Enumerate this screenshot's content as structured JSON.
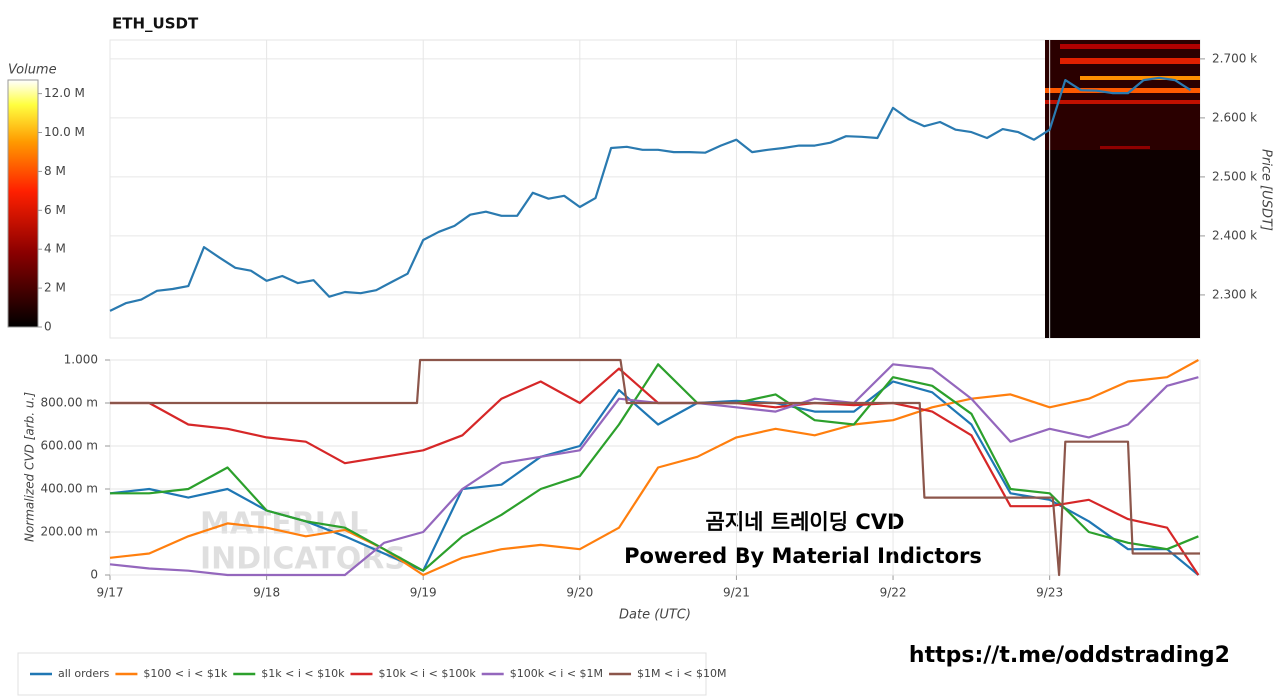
{
  "chart_data": [
    {
      "type": "line",
      "title": "ETH_USDT",
      "ylabel": "Price [USDT]",
      "color": "#2a7ab0",
      "x": [
        0,
        0.1,
        0.2,
        0.3,
        0.4,
        0.5,
        0.6,
        0.7,
        0.8,
        0.9,
        1.0,
        1.1,
        1.2,
        1.3,
        1.4,
        1.5,
        1.6,
        1.7,
        1.8,
        1.9,
        2.0,
        2.1,
        2.2,
        2.3,
        2.4,
        2.5,
        2.6,
        2.7,
        2.8,
        2.9,
        3.0,
        3.1,
        3.2,
        3.3,
        3.4,
        3.5,
        3.6,
        3.7,
        3.8,
        3.9,
        4.0,
        4.1,
        4.2,
        4.3,
        4.4,
        4.5,
        4.6,
        4.7,
        4.8,
        4.9,
        5.0,
        5.1,
        5.2,
        5.3,
        5.4,
        5.5,
        5.6,
        5.7,
        5.8,
        5.9,
        6.0,
        6.1,
        6.2,
        6.3,
        6.4,
        6.5,
        6.6,
        6.7,
        6.8,
        6.9
      ],
      "values": [
        2273,
        2286,
        2292,
        2307,
        2310,
        2315,
        2381,
        2363,
        2346,
        2341,
        2324,
        2332,
        2320,
        2325,
        2297,
        2305,
        2303,
        2308,
        2322,
        2336,
        2393,
        2407,
        2417,
        2436,
        2441,
        2434,
        2434,
        2473,
        2463,
        2468,
        2449,
        2464,
        2549,
        2551,
        2546,
        2546,
        2542,
        2542,
        2541,
        2553,
        2563,
        2542,
        2546,
        2549,
        2553,
        2553,
        2558,
        2569,
        2568,
        2566,
        2617,
        2598,
        2586,
        2593,
        2580,
        2576,
        2566,
        2581,
        2576,
        2563,
        2580,
        2664,
        2647,
        2646,
        2642,
        2642,
        2664,
        2668,
        2664,
        2647
      ],
      "xlim": [
        0,
        6.96
      ],
      "ylim": [
        2227,
        2732
      ],
      "yticks": [
        {
          "value": 2300,
          "label": "2.300 k"
        },
        {
          "value": 2400,
          "label": "2.400 k"
        },
        {
          "value": 2500,
          "label": "2.500 k"
        },
        {
          "value": 2600,
          "label": "2.600 k"
        },
        {
          "value": 2700,
          "label": "2.700 k"
        }
      ],
      "colorbar": {
        "label": "Volume",
        "lim": [
          0,
          12700000
        ],
        "ticks": [
          0,
          {
            "value": 2000000,
            "label": "2 M"
          },
          {
            "value": 4000000,
            "label": "4 M"
          },
          {
            "value": 6000000,
            "label": "6 M"
          },
          {
            "value": 8000000,
            "label": "8 M"
          },
          {
            "value": 10000000,
            "label": "10.0 M"
          },
          {
            "value": 12000000,
            "label": "12.0 M"
          }
        ]
      },
      "grid": true
    },
    {
      "type": "line",
      "xlabel": "Date (UTC)",
      "ylabel": "Normalized CVD [arb. u.]",
      "x": [
        0,
        0.25,
        0.5,
        0.75,
        1,
        1.25,
        1.5,
        1.75,
        2,
        2.25,
        2.5,
        2.75,
        3,
        3.25,
        3.5,
        3.75,
        4,
        4.25,
        4.5,
        4.75,
        5,
        5.25,
        5.5,
        5.75,
        6,
        6.25,
        6.5,
        6.75,
        6.95
      ],
      "xlim": [
        0,
        6.96
      ],
      "xticks": [
        {
          "value": 0,
          "label": "9/17"
        },
        {
          "value": 1,
          "label": "9/18"
        },
        {
          "value": 2,
          "label": "9/19"
        },
        {
          "value": 3,
          "label": "9/20"
        },
        {
          "value": 4,
          "label": "9/21"
        },
        {
          "value": 5,
          "label": "9/22"
        },
        {
          "value": 6,
          "label": "9/23"
        }
      ],
      "ylim": [
        0,
        1
      ],
      "yticks": [
        0,
        {
          "value": 0.2,
          "label": "200.00 m"
        },
        {
          "value": 0.4,
          "label": "400.00 m"
        },
        {
          "value": 0.6,
          "label": "600.00 m"
        },
        {
          "value": 0.8,
          "label": "800.00 m"
        },
        {
          "value": 1,
          "label": "1.000"
        }
      ],
      "grid": true,
      "legend": "bottom",
      "series": [
        {
          "name": "all orders",
          "color": "#1f77b4",
          "values": [
            0.38,
            0.4,
            0.36,
            0.4,
            0.3,
            0.25,
            0.18,
            0.1,
            0.02,
            0.4,
            0.42,
            0.55,
            0.6,
            0.86,
            0.7,
            0.8,
            0.81,
            0.8,
            0.76,
            0.76,
            0.9,
            0.85,
            0.7,
            0.38,
            0.35,
            0.25,
            0.12,
            0.12,
            0.0
          ]
        },
        {
          "name": "$100 < i < $1k",
          "color": "#ff7f0e",
          "values": [
            0.08,
            0.1,
            0.18,
            0.24,
            0.22,
            0.18,
            0.21,
            0.12,
            0.0,
            0.08,
            0.12,
            0.14,
            0.12,
            0.22,
            0.5,
            0.55,
            0.64,
            0.68,
            0.65,
            0.7,
            0.72,
            0.78,
            0.82,
            0.84,
            0.78,
            0.82,
            0.9,
            0.92,
            1.0
          ]
        },
        {
          "name": "$1k < i < $10k",
          "color": "#2ca02c",
          "values": [
            0.38,
            0.38,
            0.4,
            0.5,
            0.3,
            0.25,
            0.22,
            0.12,
            0.02,
            0.18,
            0.28,
            0.4,
            0.46,
            0.7,
            0.98,
            0.8,
            0.8,
            0.84,
            0.72,
            0.7,
            0.92,
            0.88,
            0.75,
            0.4,
            0.38,
            0.2,
            0.15,
            0.12,
            0.18
          ]
        },
        {
          "name": "$10k < i < $100k",
          "color": "#d62728",
          "values": [
            0.8,
            0.8,
            0.7,
            0.68,
            0.64,
            0.62,
            0.52,
            0.55,
            0.58,
            0.65,
            0.82,
            0.9,
            0.8,
            0.96,
            0.8,
            0.8,
            0.8,
            0.78,
            0.8,
            0.79,
            0.8,
            0.76,
            0.65,
            0.32,
            0.32,
            0.35,
            0.26,
            0.22,
            0.0
          ]
        },
        {
          "name": "$100k < i < $1M",
          "color": "#9467bd",
          "values": [
            0.05,
            0.03,
            0.02,
            0.0,
            0.0,
            0.0,
            0.0,
            0.15,
            0.2,
            0.4,
            0.52,
            0.55,
            0.58,
            0.82,
            0.8,
            0.8,
            0.78,
            0.76,
            0.82,
            0.8,
            0.98,
            0.96,
            0.82,
            0.62,
            0.68,
            0.64,
            0.7,
            0.88,
            0.92
          ]
        },
        {
          "name": "$1M < i < $10M",
          "color": "#8c564b",
          "x": [
            0,
            1.96,
            1.98,
            3.26,
            3.3,
            5.17,
            5.2,
            6.02,
            6.06,
            6.1,
            6.5,
            6.53,
            6.96
          ],
          "values": [
            0.8,
            0.8,
            1.0,
            1.0,
            0.8,
            0.8,
            0.36,
            0.36,
            0,
            0.62,
            0.62,
            0.1,
            0.1
          ]
        }
      ],
      "annotations": [
        "곰지네 트레이딩 CVD",
        "Powered By Material Indictors"
      ],
      "watermark": [
        "MATERIAL",
        "INDICATORS"
      ]
    }
  ],
  "footer": "https://t.me/oddstrading2"
}
